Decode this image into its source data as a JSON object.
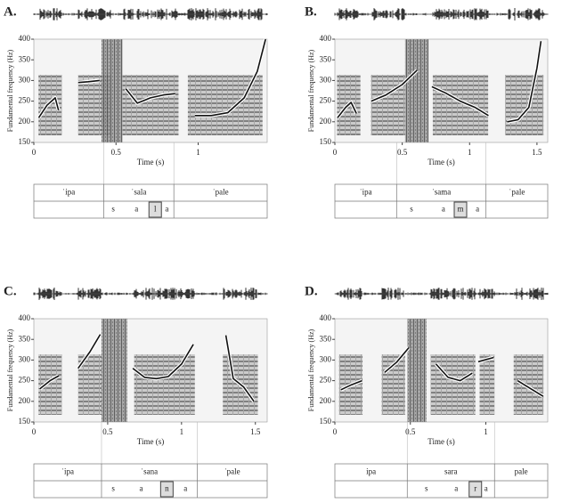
{
  "chart_data": [
    {
      "type": "line",
      "panel_label": "A.",
      "y_label": "Fundamental frequency (Hz)",
      "x_label": "Time (s)",
      "x": [
        0.03,
        0.08,
        0.13,
        0.15,
        null,
        0.27,
        0.33,
        0.4,
        null,
        0.56,
        0.63,
        0.71,
        0.79,
        0.86,
        null,
        0.98,
        1.08,
        1.18,
        1.28,
        1.36,
        1.41
      ],
      "values": [
        210,
        240,
        258,
        228,
        null,
        295,
        297,
        300,
        null,
        280,
        245,
        258,
        265,
        268,
        null,
        215,
        215,
        222,
        258,
        322,
        400
      ],
      "color": "#111111",
      "xlim": [
        0,
        1.42
      ],
      "ylim": [
        150,
        400
      ],
      "xticks": [
        0,
        0.5,
        1
      ],
      "yticks": [
        150,
        200,
        250,
        300,
        350,
        400
      ],
      "words": [
        "ˈipa",
        "ˈsala",
        "ˈpale"
      ],
      "segments": [
        "s",
        "a",
        "l",
        "a"
      ],
      "highlight": 2
    },
    {
      "type": "line",
      "panel_label": "B.",
      "y_label": "Fundamental frequency (Hz)",
      "x_label": "Time (s)",
      "x": [
        0.02,
        0.08,
        0.12,
        0.16,
        null,
        0.27,
        0.38,
        0.5,
        0.61,
        null,
        0.72,
        0.82,
        0.93,
        1.04,
        1.14,
        null,
        1.28,
        1.36,
        1.44,
        1.5,
        1.53
      ],
      "values": [
        210,
        235,
        247,
        220,
        null,
        250,
        265,
        290,
        325,
        null,
        285,
        270,
        250,
        235,
        215,
        null,
        200,
        205,
        235,
        330,
        395
      ],
      "color": "#111111",
      "xlim": [
        0,
        1.58
      ],
      "ylim": [
        150,
        400
      ],
      "xticks": [
        0,
        0.5,
        1,
        1.5
      ],
      "yticks": [
        150,
        200,
        250,
        300,
        350,
        400
      ],
      "words": [
        "ˈipa",
        "ˈsama",
        "ˈpale"
      ],
      "segments": [
        "s",
        "a",
        "m",
        "a"
      ],
      "highlight": 2
    },
    {
      "type": "line",
      "panel_label": "C.",
      "y_label": "Fundamental frequency (Hz)",
      "x_label": "Time (s)",
      "x": [
        0.04,
        0.11,
        0.17,
        null,
        0.3,
        0.38,
        0.45,
        null,
        0.67,
        0.75,
        0.83,
        0.91,
        1.0,
        1.08,
        null,
        1.3,
        1.35,
        1.42,
        1.49
      ],
      "values": [
        230,
        250,
        262,
        null,
        280,
        320,
        362,
        null,
        280,
        258,
        255,
        260,
        290,
        338,
        null,
        360,
        255,
        235,
        200
      ],
      "color": "#111111",
      "xlim": [
        0,
        1.58
      ],
      "ylim": [
        150,
        400
      ],
      "xticks": [
        0,
        0.5,
        1,
        1.5
      ],
      "yticks": [
        150,
        200,
        250,
        300,
        350,
        400
      ],
      "words": [
        "ˈipa",
        "ˈsana",
        "ˈpale"
      ],
      "segments": [
        "s",
        "a",
        "n",
        "a"
      ],
      "highlight": 2
    },
    {
      "type": "line",
      "panel_label": "D.",
      "y_label": "Fundamental frequency (Hz)",
      "x_label": "Time (s)",
      "x": [
        0.04,
        0.11,
        0.18,
        null,
        0.33,
        0.41,
        0.49,
        null,
        0.67,
        0.75,
        0.83,
        0.91,
        null,
        0.95,
        1.05,
        null,
        1.21,
        1.3,
        1.38
      ],
      "values": [
        228,
        240,
        250,
        null,
        270,
        295,
        330,
        null,
        290,
        258,
        250,
        268,
        null,
        296,
        306,
        null,
        250,
        230,
        212
      ],
      "color": "#111111",
      "xlim": [
        0,
        1.41
      ],
      "ylim": [
        150,
        400
      ],
      "xticks": [
        0,
        0.5,
        1
      ],
      "yticks": [
        150,
        200,
        250,
        300,
        350,
        400
      ],
      "words": [
        "ipa",
        "sara",
        "pale"
      ],
      "segments": [
        "s",
        "a",
        "r",
        "a"
      ],
      "highlight": 2
    }
  ]
}
